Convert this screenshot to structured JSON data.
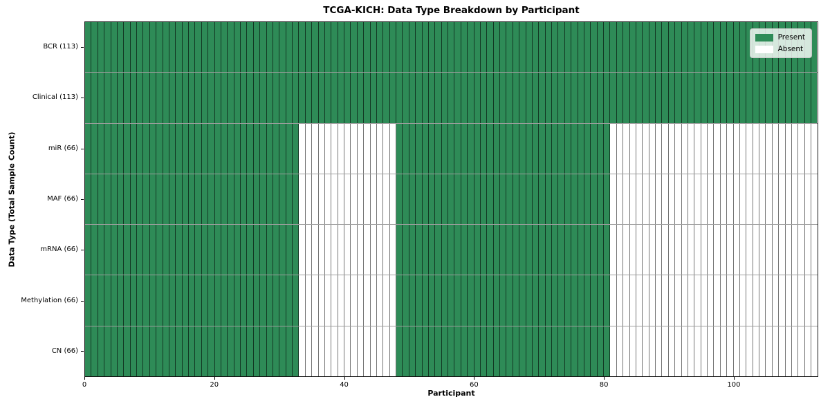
{
  "chart_data": {
    "type": "heatmap",
    "title": "TCGA-KICH: Data Type Breakdown by Participant",
    "xlabel": "Participant",
    "ylabel": "Data Type (Total Sample Count)",
    "x_range": [
      0,
      113
    ],
    "n_participants": 113,
    "x_ticks": [
      0,
      20,
      40,
      60,
      80,
      100
    ],
    "grid": "cell-borders",
    "legend_position": "upper right",
    "legend": [
      {
        "label": "Present",
        "color": "#2e8b57"
      },
      {
        "label": "Absent",
        "color": "#ffffff"
      }
    ],
    "rows": [
      {
        "label": "BCR (113)",
        "total_present": 113,
        "present_segments": [
          [
            0,
            113
          ]
        ]
      },
      {
        "label": "Clinical (113)",
        "total_present": 113,
        "present_segments": [
          [
            0,
            113
          ]
        ]
      },
      {
        "label": "miR (66)",
        "total_present": 66,
        "present_segments": [
          [
            0,
            33
          ],
          [
            48,
            81
          ]
        ]
      },
      {
        "label": "MAF (66)",
        "total_present": 66,
        "present_segments": [
          [
            0,
            33
          ],
          [
            48,
            81
          ]
        ]
      },
      {
        "label": "mRNA (66)",
        "total_present": 66,
        "present_segments": [
          [
            0,
            33
          ],
          [
            48,
            81
          ]
        ]
      },
      {
        "label": "Methylation (66)",
        "total_present": 66,
        "present_segments": [
          [
            0,
            33
          ],
          [
            48,
            81
          ]
        ]
      },
      {
        "label": "CN (66)",
        "total_present": 66,
        "present_segments": [
          [
            0,
            33
          ],
          [
            48,
            81
          ]
        ]
      }
    ]
  }
}
